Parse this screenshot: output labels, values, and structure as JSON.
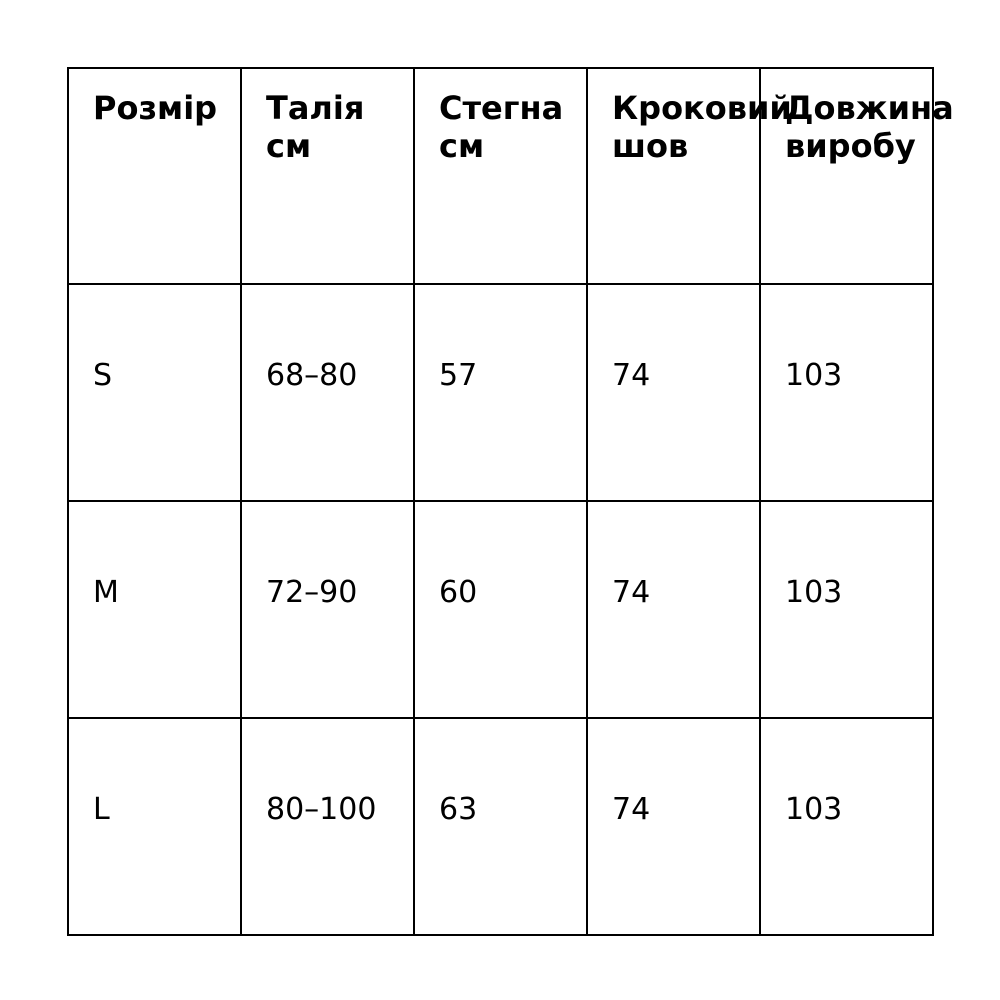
{
  "table": {
    "headers": [
      [
        "Розмір"
      ],
      [
        "Талія",
        "см"
      ],
      [
        "Стегна",
        "см"
      ],
      [
        "Кроковий",
        "шов"
      ],
      [
        "Довжина",
        "виробу"
      ]
    ],
    "rows": [
      [
        "S",
        "68–80",
        "57",
        "74",
        "103"
      ],
      [
        "M",
        "72–90",
        "60",
        "74",
        "103"
      ],
      [
        "L",
        "80–100",
        "63",
        "74",
        "103"
      ]
    ]
  }
}
